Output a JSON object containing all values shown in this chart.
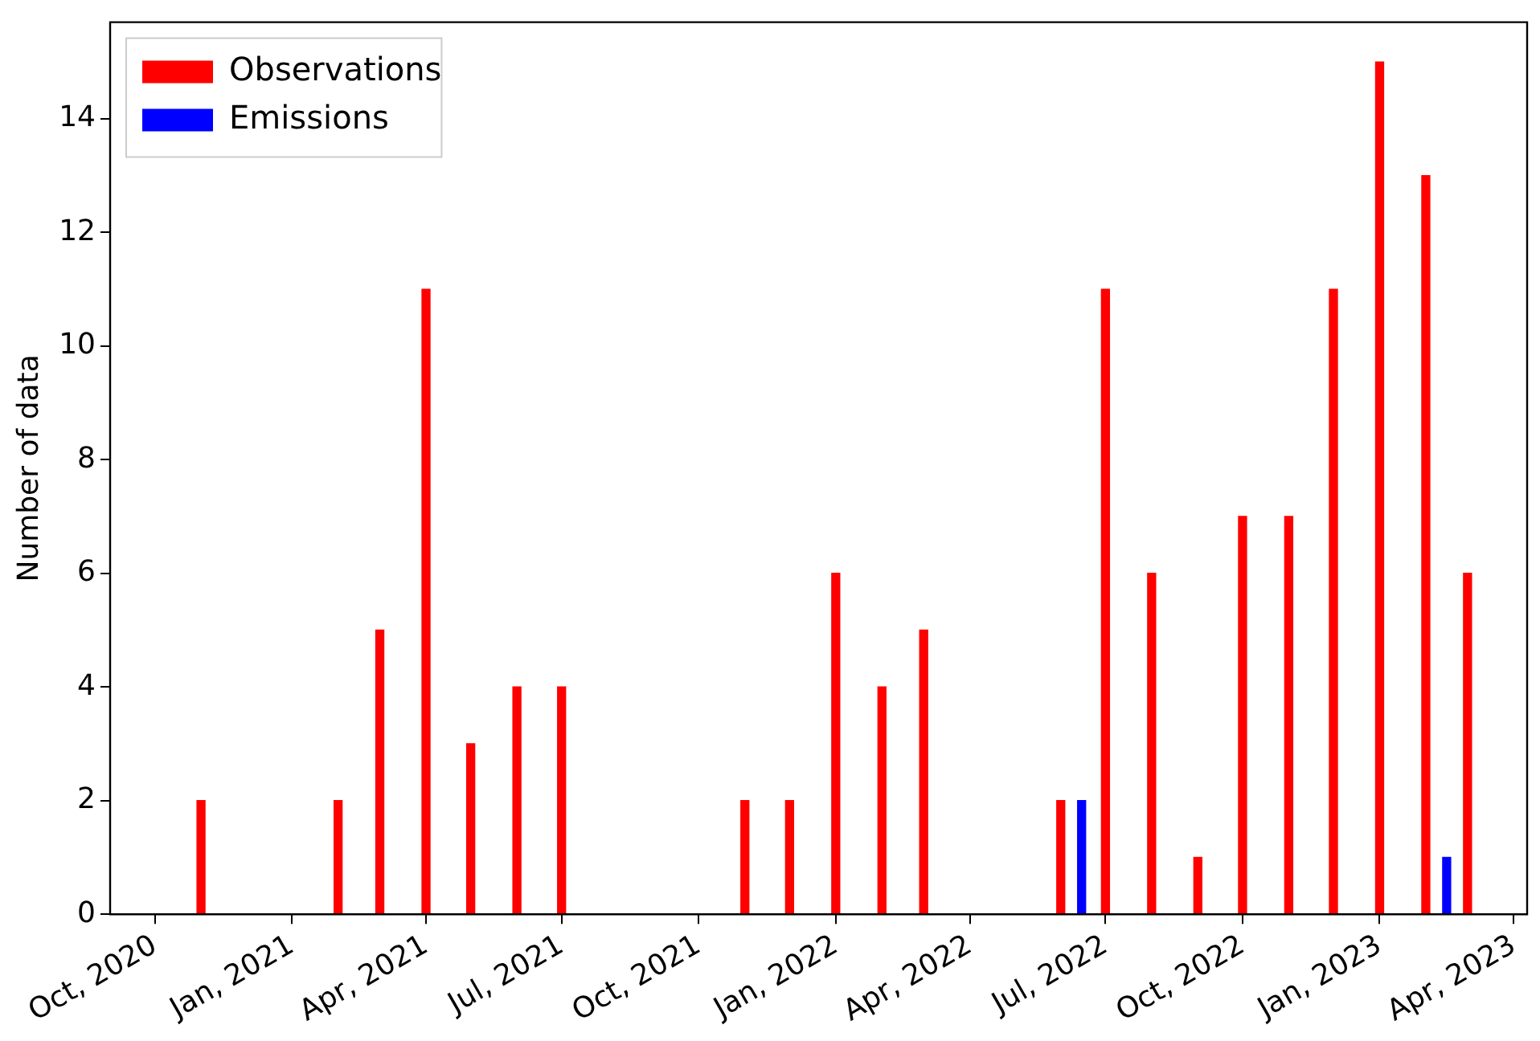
{
  "chart_data": {
    "type": "bar",
    "ylabel": "Number of data",
    "series": [
      {
        "name": "Observations",
        "color": "#ff0000",
        "x": [
          "2020-11-01",
          "2021-02-01",
          "2021-03-01",
          "2021-04-01",
          "2021-05-01",
          "2021-06-01",
          "2021-07-01",
          "2021-11-01",
          "2021-12-01",
          "2022-01-01",
          "2022-02-01",
          "2022-03-01",
          "2022-06-01",
          "2022-07-01",
          "2022-08-01",
          "2022-09-01",
          "2022-10-01",
          "2022-11-01",
          "2022-12-01",
          "2023-01-01",
          "2023-02-01",
          "2023-03-01"
        ],
        "values": [
          2,
          2,
          5,
          11,
          3,
          4,
          4,
          2,
          2,
          6,
          4,
          5,
          2,
          11,
          6,
          1,
          7,
          7,
          11,
          15,
          13,
          6
        ]
      },
      {
        "name": "Emissions",
        "color": "#0000ff",
        "x": [
          "2022-06-15",
          "2023-02-15"
        ],
        "values": [
          2,
          1
        ]
      }
    ],
    "xlim": [
      "2020-09-01",
      "2023-04-10"
    ],
    "xticks": [
      {
        "value": "2020-10-01",
        "label": "Oct, 2020"
      },
      {
        "value": "2021-01-01",
        "label": "Jan, 2021"
      },
      {
        "value": "2021-04-01",
        "label": "Apr, 2021"
      },
      {
        "value": "2021-07-01",
        "label": "Jul, 2021"
      },
      {
        "value": "2021-10-01",
        "label": "Oct, 2021"
      },
      {
        "value": "2022-01-01",
        "label": "Jan, 2022"
      },
      {
        "value": "2022-04-01",
        "label": "Apr, 2022"
      },
      {
        "value": "2022-07-01",
        "label": "Jul, 2022"
      },
      {
        "value": "2022-10-01",
        "label": "Oct, 2022"
      },
      {
        "value": "2023-01-01",
        "label": "Jan, 2023"
      },
      {
        "value": "2023-04-01",
        "label": "Apr, 2023"
      }
    ],
    "ylim": [
      0,
      15.7
    ],
    "yticks": [
      0,
      2,
      4,
      6,
      8,
      10,
      12,
      14
    ],
    "grid": false,
    "legend": "top left"
  }
}
